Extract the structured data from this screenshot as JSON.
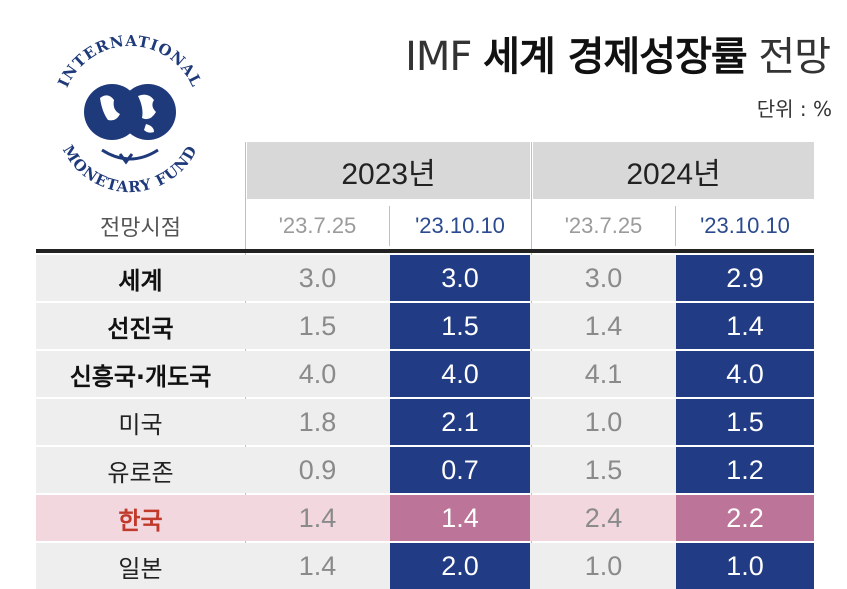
{
  "header": {
    "title_prefix": "IMF",
    "title_bold": "세계 경제성장률",
    "title_suffix": "전망",
    "unit": "단위 : %"
  },
  "logo": {
    "top_text": "INTERNATIONAL",
    "bottom_text": "MONETARY FUND"
  },
  "chart_data": {
    "type": "table",
    "title": "IMF 세계 경제성장률 전망",
    "unit": "단위 : %",
    "years": [
      "2023년",
      "2024년"
    ],
    "forecast_label": "전망시점",
    "dates": [
      "'23.7.25",
      "'23.10.10",
      "'23.7.25",
      "'23.10.10"
    ],
    "rows": [
      {
        "label": "세계",
        "values": [
          "3.0",
          "3.0",
          "3.0",
          "2.9"
        ]
      },
      {
        "label": "선진국",
        "values": [
          "1.5",
          "1.5",
          "1.4",
          "1.4"
        ]
      },
      {
        "label": "신흥국·개도국",
        "values": [
          "4.0",
          "4.0",
          "4.1",
          "4.0"
        ]
      },
      {
        "label": "미국",
        "values": [
          "1.8",
          "2.1",
          "1.0",
          "1.5"
        ]
      },
      {
        "label": "유로존",
        "values": [
          "0.9",
          "0.7",
          "1.5",
          "1.2"
        ]
      },
      {
        "label": "한국",
        "values": [
          "1.4",
          "1.4",
          "2.4",
          "2.2"
        ]
      },
      {
        "label": "일본",
        "values": [
          "1.4",
          "2.0",
          "1.0",
          "1.0"
        ]
      }
    ]
  },
  "colors": {
    "highlight_new": "#213c84",
    "korea_highlight": "#bd7499",
    "korea_band": "#f2d8de",
    "row_band": "#eeeeee",
    "header_band": "#d8d8d8",
    "korea_text": "#c0392b"
  }
}
